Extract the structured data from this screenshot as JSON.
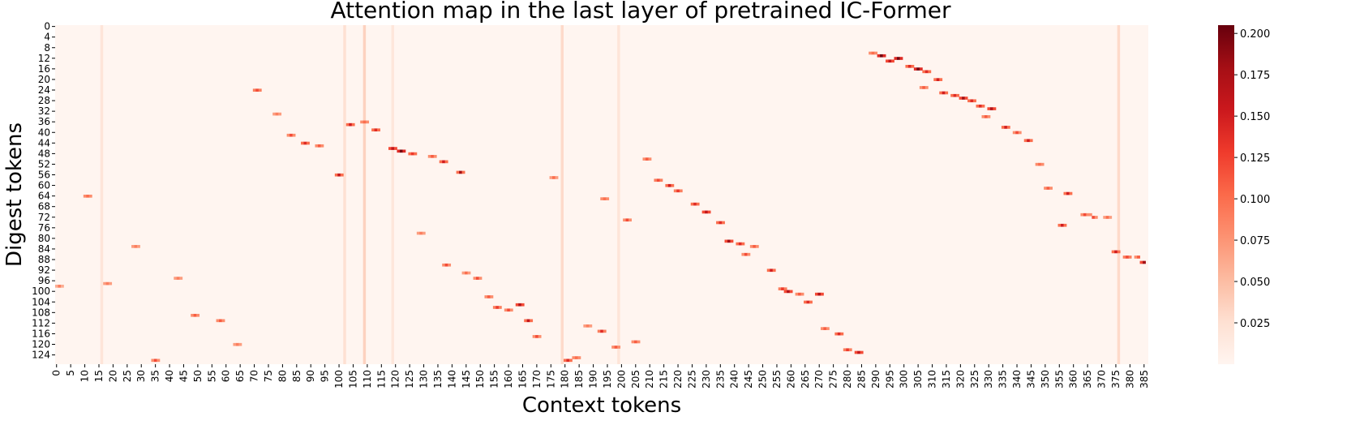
{
  "chart_data": {
    "type": "heatmap",
    "title": "Attention map in the last layer of pretrained IC-Former",
    "xlabel": "Context tokens",
    "ylabel": "Digest tokens",
    "n_cols": 387,
    "n_rows": 128,
    "x_ticks": [
      0,
      5,
      10,
      15,
      20,
      25,
      30,
      35,
      40,
      45,
      50,
      55,
      60,
      65,
      70,
      75,
      80,
      85,
      90,
      95,
      100,
      105,
      110,
      115,
      120,
      125,
      130,
      135,
      140,
      145,
      150,
      155,
      160,
      165,
      170,
      175,
      180,
      185,
      190,
      195,
      200,
      205,
      210,
      215,
      220,
      225,
      230,
      235,
      240,
      245,
      250,
      255,
      260,
      265,
      270,
      275,
      280,
      285,
      290,
      295,
      300,
      305,
      310,
      315,
      320,
      325,
      330,
      335,
      340,
      345,
      350,
      355,
      360,
      365,
      370,
      375,
      380,
      385
    ],
    "y_ticks": [
      0,
      4,
      8,
      12,
      16,
      20,
      24,
      28,
      32,
      36,
      40,
      44,
      48,
      52,
      56,
      60,
      64,
      68,
      72,
      76,
      80,
      84,
      88,
      92,
      96,
      100,
      104,
      108,
      112,
      116,
      120,
      124
    ],
    "colorbar": {
      "colormap": "Reds",
      "min": 0.0,
      "max": 0.205,
      "ticks": [
        0.025,
        0.05,
        0.075,
        0.1,
        0.125,
        0.15,
        0.175,
        0.2
      ],
      "tick_labels": [
        "0.025",
        "0.050",
        "0.075",
        "0.100",
        "0.125",
        "0.150",
        "0.175",
        "0.200"
      ]
    },
    "grid": false,
    "background_value": 0.004,
    "column_stripes": [
      {
        "col": 16,
        "value": 0.02
      },
      {
        "col": 102,
        "value": 0.025
      },
      {
        "col": 109,
        "value": 0.035
      },
      {
        "col": 119,
        "value": 0.018
      },
      {
        "col": 179,
        "value": 0.03
      },
      {
        "col": 199,
        "value": 0.02
      },
      {
        "col": 376,
        "value": 0.03
      }
    ],
    "cells": [
      [
        0,
        98,
        0.06
      ],
      [
        1,
        98,
        0.09
      ],
      [
        2,
        98,
        0.06
      ],
      [
        10,
        64,
        0.08
      ],
      [
        11,
        64,
        0.1
      ],
      [
        12,
        64,
        0.08
      ],
      [
        27,
        83,
        0.07
      ],
      [
        28,
        83,
        0.09
      ],
      [
        29,
        83,
        0.07
      ],
      [
        17,
        97,
        0.07
      ],
      [
        18,
        97,
        0.09
      ],
      [
        19,
        97,
        0.07
      ],
      [
        34,
        126,
        0.08
      ],
      [
        35,
        126,
        0.12
      ],
      [
        36,
        126,
        0.08
      ],
      [
        42,
        95,
        0.07
      ],
      [
        43,
        95,
        0.09
      ],
      [
        44,
        95,
        0.07
      ],
      [
        48,
        109,
        0.08
      ],
      [
        49,
        109,
        0.11
      ],
      [
        50,
        109,
        0.08
      ],
      [
        57,
        111,
        0.08
      ],
      [
        58,
        111,
        0.11
      ],
      [
        59,
        111,
        0.08
      ],
      [
        63,
        120,
        0.07
      ],
      [
        64,
        120,
        0.09
      ],
      [
        65,
        120,
        0.07
      ],
      [
        70,
        24,
        0.09
      ],
      [
        71,
        24,
        0.12
      ],
      [
        72,
        24,
        0.09
      ],
      [
        77,
        33,
        0.07
      ],
      [
        78,
        33,
        0.09
      ],
      [
        79,
        33,
        0.07
      ],
      [
        82,
        41,
        0.08
      ],
      [
        83,
        41,
        0.12
      ],
      [
        84,
        41,
        0.08
      ],
      [
        87,
        44,
        0.1
      ],
      [
        88,
        44,
        0.14
      ],
      [
        89,
        44,
        0.1
      ],
      [
        92,
        45,
        0.08
      ],
      [
        93,
        45,
        0.11
      ],
      [
        94,
        45,
        0.08
      ],
      [
        99,
        56,
        0.1
      ],
      [
        100,
        56,
        0.16
      ],
      [
        101,
        56,
        0.1
      ],
      [
        103,
        37,
        0.1
      ],
      [
        104,
        37,
        0.15
      ],
      [
        105,
        37,
        0.1
      ],
      [
        108,
        36,
        0.08
      ],
      [
        109,
        36,
        0.1
      ],
      [
        110,
        36,
        0.08
      ],
      [
        112,
        39,
        0.1
      ],
      [
        113,
        39,
        0.14
      ],
      [
        114,
        39,
        0.1
      ],
      [
        118,
        46,
        0.12
      ],
      [
        119,
        46,
        0.16
      ],
      [
        120,
        46,
        0.12
      ],
      [
        121,
        47,
        0.14
      ],
      [
        122,
        47,
        0.2
      ],
      [
        123,
        47,
        0.14
      ],
      [
        125,
        48,
        0.1
      ],
      [
        126,
        48,
        0.13
      ],
      [
        127,
        48,
        0.1
      ],
      [
        132,
        49,
        0.08
      ],
      [
        133,
        49,
        0.11
      ],
      [
        134,
        49,
        0.08
      ],
      [
        136,
        51,
        0.1
      ],
      [
        137,
        51,
        0.15
      ],
      [
        138,
        51,
        0.1
      ],
      [
        142,
        55,
        0.1
      ],
      [
        143,
        55,
        0.18
      ],
      [
        144,
        55,
        0.1
      ],
      [
        137,
        90,
        0.08
      ],
      [
        138,
        90,
        0.12
      ],
      [
        139,
        90,
        0.08
      ],
      [
        144,
        93,
        0.07
      ],
      [
        145,
        93,
        0.1
      ],
      [
        146,
        93,
        0.07
      ],
      [
        148,
        95,
        0.08
      ],
      [
        149,
        95,
        0.12
      ],
      [
        150,
        95,
        0.08
      ],
      [
        152,
        102,
        0.08
      ],
      [
        153,
        102,
        0.11
      ],
      [
        154,
        102,
        0.08
      ],
      [
        155,
        106,
        0.09
      ],
      [
        156,
        106,
        0.13
      ],
      [
        157,
        106,
        0.09
      ],
      [
        159,
        107,
        0.08
      ],
      [
        160,
        107,
        0.12
      ],
      [
        161,
        107,
        0.08
      ],
      [
        163,
        105,
        0.12
      ],
      [
        164,
        105,
        0.17
      ],
      [
        165,
        105,
        0.12
      ],
      [
        166,
        111,
        0.1
      ],
      [
        167,
        111,
        0.16
      ],
      [
        168,
        111,
        0.1
      ],
      [
        169,
        117,
        0.08
      ],
      [
        170,
        117,
        0.12
      ],
      [
        171,
        117,
        0.08
      ],
      [
        175,
        57,
        0.07
      ],
      [
        176,
        57,
        0.1
      ],
      [
        177,
        57,
        0.07
      ],
      [
        180,
        126,
        0.1
      ],
      [
        181,
        126,
        0.14
      ],
      [
        182,
        126,
        0.1
      ],
      [
        183,
        125,
        0.08
      ],
      [
        184,
        125,
        0.1
      ],
      [
        185,
        125,
        0.08
      ],
      [
        128,
        78,
        0.07
      ],
      [
        129,
        78,
        0.09
      ],
      [
        130,
        78,
        0.07
      ],
      [
        187,
        113,
        0.07
      ],
      [
        188,
        113,
        0.09
      ],
      [
        189,
        113,
        0.07
      ],
      [
        192,
        115,
        0.09
      ],
      [
        193,
        115,
        0.14
      ],
      [
        194,
        115,
        0.09
      ],
      [
        197,
        121,
        0.08
      ],
      [
        198,
        121,
        0.11
      ],
      [
        199,
        121,
        0.08
      ],
      [
        204,
        119,
        0.08
      ],
      [
        205,
        119,
        0.11
      ],
      [
        206,
        119,
        0.08
      ],
      [
        193,
        65,
        0.08
      ],
      [
        194,
        65,
        0.1
      ],
      [
        195,
        65,
        0.08
      ],
      [
        201,
        73,
        0.08
      ],
      [
        202,
        73,
        0.12
      ],
      [
        203,
        73,
        0.08
      ],
      [
        208,
        50,
        0.08
      ],
      [
        209,
        50,
        0.11
      ],
      [
        210,
        50,
        0.08
      ],
      [
        212,
        58,
        0.09
      ],
      [
        213,
        58,
        0.12
      ],
      [
        214,
        58,
        0.09
      ],
      [
        216,
        60,
        0.1
      ],
      [
        217,
        60,
        0.15
      ],
      [
        218,
        60,
        0.1
      ],
      [
        219,
        62,
        0.09
      ],
      [
        220,
        62,
        0.13
      ],
      [
        221,
        62,
        0.09
      ],
      [
        225,
        67,
        0.1
      ],
      [
        226,
        67,
        0.14
      ],
      [
        227,
        67,
        0.1
      ],
      [
        229,
        70,
        0.12
      ],
      [
        230,
        70,
        0.16
      ],
      [
        231,
        70,
        0.12
      ],
      [
        234,
        74,
        0.1
      ],
      [
        235,
        74,
        0.14
      ],
      [
        236,
        74,
        0.1
      ],
      [
        237,
        81,
        0.12
      ],
      [
        238,
        81,
        0.18
      ],
      [
        239,
        81,
        0.12
      ],
      [
        241,
        82,
        0.1
      ],
      [
        242,
        82,
        0.14
      ],
      [
        243,
        82,
        0.1
      ],
      [
        246,
        83,
        0.08
      ],
      [
        247,
        83,
        0.11
      ],
      [
        248,
        83,
        0.08
      ],
      [
        243,
        86,
        0.08
      ],
      [
        244,
        86,
        0.12
      ],
      [
        245,
        86,
        0.08
      ],
      [
        252,
        92,
        0.1
      ],
      [
        253,
        92,
        0.15
      ],
      [
        254,
        92,
        0.1
      ],
      [
        256,
        99,
        0.09
      ],
      [
        257,
        99,
        0.13
      ],
      [
        258,
        99,
        0.09
      ],
      [
        258,
        100,
        0.12
      ],
      [
        259,
        100,
        0.17
      ],
      [
        260,
        100,
        0.12
      ],
      [
        262,
        101,
        0.08
      ],
      [
        263,
        101,
        0.11
      ],
      [
        264,
        101,
        0.08
      ],
      [
        265,
        104,
        0.1
      ],
      [
        266,
        104,
        0.14
      ],
      [
        267,
        104,
        0.1
      ],
      [
        269,
        101,
        0.12
      ],
      [
        270,
        101,
        0.17
      ],
      [
        271,
        101,
        0.12
      ],
      [
        271,
        114,
        0.08
      ],
      [
        272,
        114,
        0.11
      ],
      [
        273,
        114,
        0.08
      ],
      [
        276,
        116,
        0.1
      ],
      [
        277,
        116,
        0.14
      ],
      [
        278,
        116,
        0.1
      ],
      [
        279,
        122,
        0.09
      ],
      [
        280,
        122,
        0.13
      ],
      [
        281,
        122,
        0.09
      ],
      [
        283,
        123,
        0.12
      ],
      [
        284,
        123,
        0.16
      ],
      [
        285,
        123,
        0.12
      ],
      [
        288,
        10,
        0.08
      ],
      [
        289,
        10,
        0.1
      ],
      [
        290,
        10,
        0.08
      ],
      [
        291,
        11,
        0.14
      ],
      [
        292,
        11,
        0.2
      ],
      [
        293,
        11,
        0.14
      ],
      [
        294,
        13,
        0.12
      ],
      [
        295,
        13,
        0.16
      ],
      [
        296,
        13,
        0.12
      ],
      [
        297,
        12,
        0.14
      ],
      [
        298,
        12,
        0.2
      ],
      [
        299,
        12,
        0.14
      ],
      [
        301,
        15,
        0.1
      ],
      [
        302,
        15,
        0.14
      ],
      [
        303,
        15,
        0.1
      ],
      [
        304,
        16,
        0.14
      ],
      [
        305,
        16,
        0.2
      ],
      [
        306,
        16,
        0.14
      ],
      [
        307,
        17,
        0.1
      ],
      [
        308,
        17,
        0.14
      ],
      [
        309,
        17,
        0.1
      ],
      [
        311,
        20,
        0.1
      ],
      [
        312,
        20,
        0.15
      ],
      [
        313,
        20,
        0.1
      ],
      [
        306,
        23,
        0.08
      ],
      [
        307,
        23,
        0.11
      ],
      [
        308,
        23,
        0.08
      ],
      [
        313,
        25,
        0.1
      ],
      [
        314,
        25,
        0.15
      ],
      [
        315,
        25,
        0.1
      ],
      [
        317,
        26,
        0.1
      ],
      [
        318,
        26,
        0.14
      ],
      [
        319,
        26,
        0.1
      ],
      [
        320,
        27,
        0.12
      ],
      [
        321,
        27,
        0.18
      ],
      [
        322,
        27,
        0.12
      ],
      [
        323,
        28,
        0.1
      ],
      [
        324,
        28,
        0.14
      ],
      [
        325,
        28,
        0.1
      ],
      [
        326,
        30,
        0.1
      ],
      [
        327,
        30,
        0.14
      ],
      [
        328,
        30,
        0.1
      ],
      [
        330,
        31,
        0.12
      ],
      [
        331,
        31,
        0.17
      ],
      [
        332,
        31,
        0.12
      ],
      [
        328,
        34,
        0.08
      ],
      [
        329,
        34,
        0.11
      ],
      [
        330,
        34,
        0.08
      ],
      [
        335,
        38,
        0.1
      ],
      [
        336,
        38,
        0.15
      ],
      [
        337,
        38,
        0.1
      ],
      [
        339,
        40,
        0.08
      ],
      [
        340,
        40,
        0.12
      ],
      [
        341,
        40,
        0.08
      ],
      [
        343,
        43,
        0.1
      ],
      [
        344,
        43,
        0.15
      ],
      [
        345,
        43,
        0.1
      ],
      [
        347,
        52,
        0.08
      ],
      [
        348,
        52,
        0.1
      ],
      [
        349,
        52,
        0.08
      ],
      [
        350,
        61,
        0.08
      ],
      [
        351,
        61,
        0.11
      ],
      [
        352,
        61,
        0.08
      ],
      [
        357,
        63,
        0.1
      ],
      [
        358,
        63,
        0.15
      ],
      [
        359,
        63,
        0.1
      ],
      [
        355,
        75,
        0.1
      ],
      [
        356,
        75,
        0.15
      ],
      [
        357,
        75,
        0.1
      ],
      [
        363,
        71,
        0.08
      ],
      [
        364,
        71,
        0.12
      ],
      [
        365,
        71,
        0.08
      ],
      [
        366,
        71,
        0.08
      ],
      [
        367,
        72,
        0.12
      ],
      [
        368,
        72,
        0.08
      ],
      [
        371,
        72,
        0.07
      ],
      [
        372,
        72,
        0.1
      ],
      [
        373,
        72,
        0.07
      ],
      [
        374,
        85,
        0.1
      ],
      [
        375,
        85,
        0.15
      ],
      [
        376,
        85,
        0.1
      ],
      [
        378,
        87,
        0.09
      ],
      [
        379,
        87,
        0.12
      ],
      [
        380,
        87,
        0.09
      ],
      [
        382,
        87,
        0.08
      ],
      [
        383,
        87,
        0.11
      ],
      [
        384,
        89,
        0.12
      ],
      [
        385,
        89,
        0.18
      ]
    ]
  }
}
